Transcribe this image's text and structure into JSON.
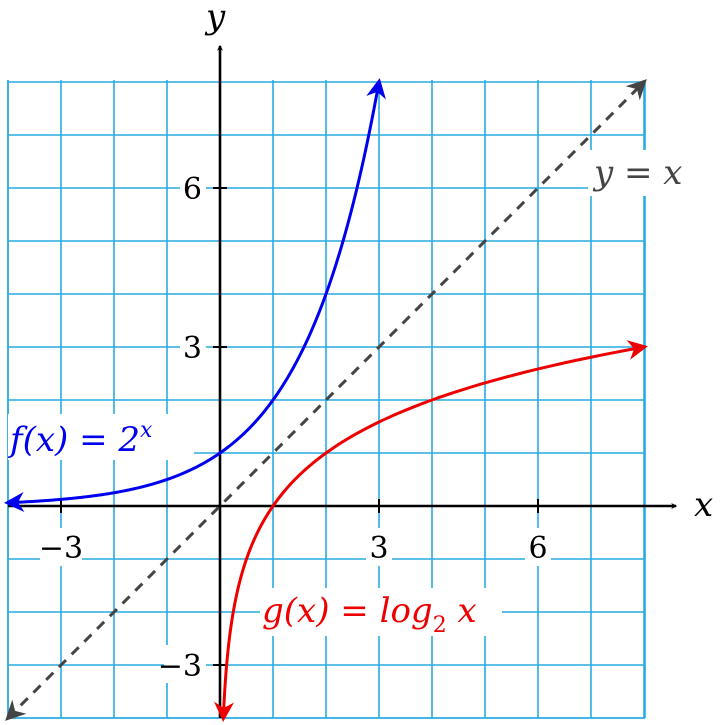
{
  "chart_data": {
    "type": "line",
    "title": "",
    "xlabel": "x",
    "ylabel": "y",
    "xlim": [
      -4,
      8
    ],
    "ylim": [
      -4,
      8
    ],
    "grid": true,
    "x_ticks": [
      -3,
      3,
      6
    ],
    "y_ticks": [
      -3,
      3,
      6
    ],
    "x_tick_labels": [
      "−3",
      "3",
      "6"
    ],
    "y_tick_labels": [
      "−3",
      "3",
      "6"
    ],
    "series": [
      {
        "key": "f",
        "label_prefix": "f(x) = 2",
        "label_sup": "x",
        "color": "#0000ee",
        "style": "solid",
        "points": [
          [
            -4,
            0.0625
          ],
          [
            -3,
            0.125
          ],
          [
            -2,
            0.25
          ],
          [
            -1,
            0.5
          ],
          [
            0,
            1
          ],
          [
            1,
            2
          ],
          [
            2,
            4
          ],
          [
            3,
            8
          ]
        ]
      },
      {
        "key": "g",
        "label_prefix": "g(x) = log",
        "label_sub": "2",
        "label_suffix": " x",
        "color": "#ee0000",
        "style": "solid",
        "points": [
          [
            0.0625,
            -4
          ],
          [
            0.125,
            -3
          ],
          [
            0.25,
            -2
          ],
          [
            0.5,
            -1
          ],
          [
            1,
            0
          ],
          [
            2,
            1
          ],
          [
            4,
            2
          ],
          [
            8,
            3
          ]
        ]
      },
      {
        "key": "id",
        "label": "y = x",
        "color": "#444444",
        "style": "dashed",
        "points": [
          [
            -4,
            -4
          ],
          [
            8,
            8
          ]
        ]
      }
    ]
  }
}
